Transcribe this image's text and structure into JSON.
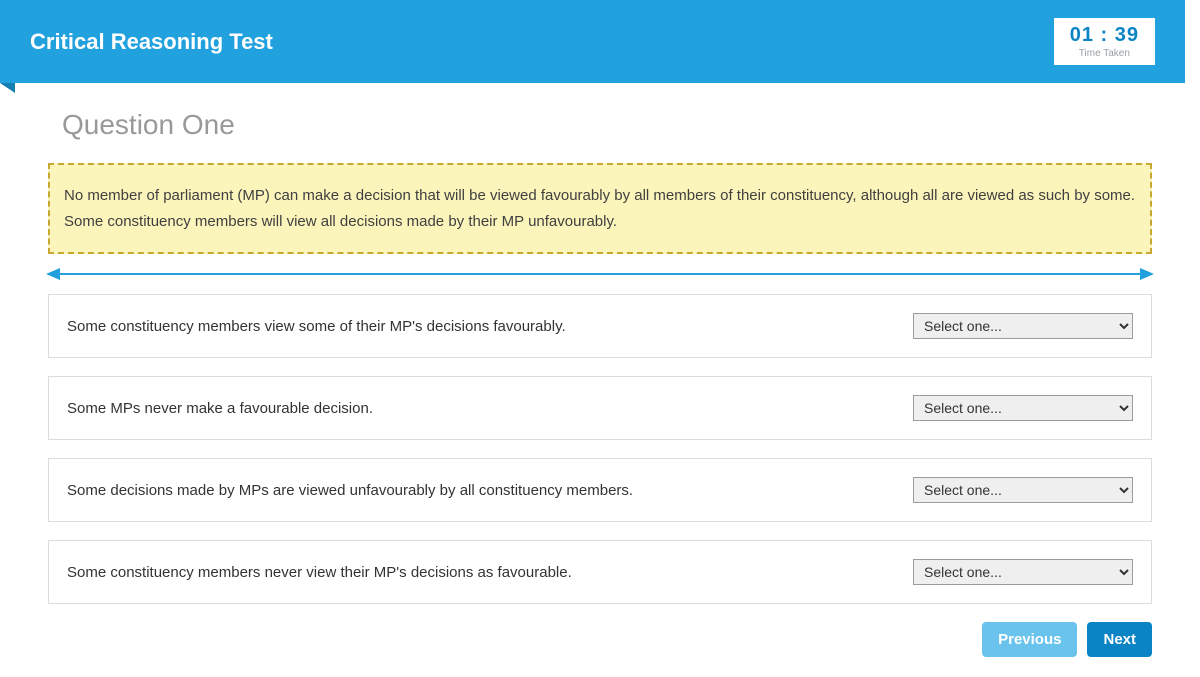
{
  "header": {
    "title": "Critical Reasoning Test",
    "timer": "01 : 39",
    "timer_label": "Time Taken"
  },
  "question": {
    "title": "Question One",
    "prompt": "No member of parliament (MP) can make a decision that will be viewed favourably by all members of their constituency, although all are viewed as such by some. Some constituency members will view all decisions made by their MP unfavourably."
  },
  "select_placeholder": "Select one...",
  "options": [
    {
      "text": "Some constituency members view some of their MP's decisions favourably."
    },
    {
      "text": "Some MPs never make a favourable decision."
    },
    {
      "text": "Some decisions made by MPs are viewed unfavourably by all constituency members."
    },
    {
      "text": "Some constituency members never view their MP's decisions as favourable."
    }
  ],
  "nav": {
    "previous": "Previous",
    "next": "Next"
  },
  "colors": {
    "banner": "#21a1de",
    "banner_fold": "#1680b3",
    "timer_text": "#0a84c5",
    "question_title": "#999999",
    "highlight_bg": "#fbf5bb",
    "highlight_border": "#c7a92f",
    "option_border": "#dcdcdc",
    "btn_prev": "#69c3ec",
    "btn_next": "#0a84c5"
  }
}
